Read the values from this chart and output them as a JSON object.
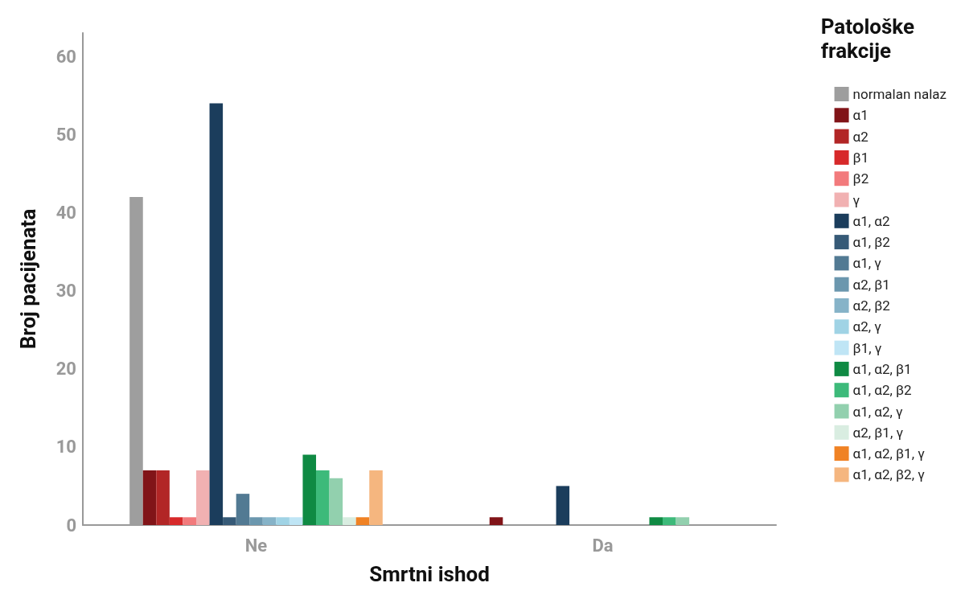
{
  "chart_data": {
    "type": "bar",
    "xlabel": "Smrtni ishod",
    "ylabel": "Broj pacijenata",
    "legend_title": "Patološke\nfrakcije",
    "legend": "right",
    "grid": false,
    "categories": [
      "Ne",
      "Da"
    ],
    "ylim": [
      0,
      63
    ],
    "yticks": [
      0,
      10,
      20,
      30,
      40,
      50,
      60
    ],
    "series": [
      {
        "name": "normalan nalaz",
        "color": "#9e9e9e",
        "values": [
          42,
          0
        ]
      },
      {
        "name": "α1",
        "color": "#811418",
        "values": [
          7,
          1
        ]
      },
      {
        "name": "α2",
        "color": "#b22626",
        "values": [
          7,
          0
        ]
      },
      {
        "name": "β1",
        "color": "#d7292a",
        "values": [
          1,
          0
        ]
      },
      {
        "name": "β2",
        "color": "#f27a7c",
        "values": [
          1,
          0
        ]
      },
      {
        "name": "γ",
        "color": "#f1b1b2",
        "values": [
          7,
          0
        ]
      },
      {
        "name": "α1, α2",
        "color": "#1b3d5c",
        "values": [
          54,
          5
        ]
      },
      {
        "name": "α1, β2",
        "color": "#365a77",
        "values": [
          1,
          0
        ]
      },
      {
        "name": "α1, γ",
        "color": "#527a93",
        "values": [
          4,
          0
        ]
      },
      {
        "name": "α2, β1",
        "color": "#6b97ae",
        "values": [
          1,
          0
        ]
      },
      {
        "name": "α2, β2",
        "color": "#86b3c8",
        "values": [
          1,
          0
        ]
      },
      {
        "name": "α2, γ",
        "color": "#a0d3e5",
        "values": [
          1,
          0
        ]
      },
      {
        "name": "β1, γ",
        "color": "#bfe5f5",
        "values": [
          1,
          0
        ]
      },
      {
        "name": "α1, α2, β1",
        "color": "#0f8a43",
        "values": [
          9,
          1
        ]
      },
      {
        "name": "α1, α2, β2",
        "color": "#3dba7a",
        "values": [
          7,
          1
        ]
      },
      {
        "name": "α1, α2, γ",
        "color": "#92d0ae",
        "values": [
          6,
          1
        ]
      },
      {
        "name": "α2, β1, γ",
        "color": "#d9ede1",
        "values": [
          1,
          0
        ]
      },
      {
        "name": "α1, α2, β1, γ",
        "color": "#f08224",
        "values": [
          1,
          0
        ]
      },
      {
        "name": "α1, α2, β2, γ",
        "color": "#f5b67f",
        "values": [
          7,
          0
        ]
      }
    ]
  }
}
